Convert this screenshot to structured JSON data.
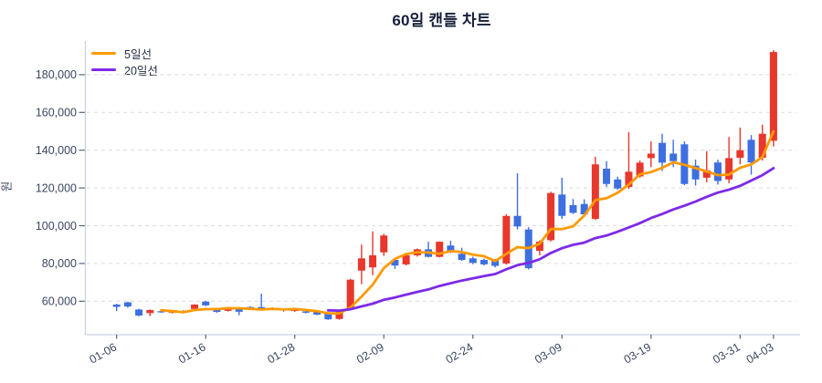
{
  "title": "60일 캔들 차트",
  "y_axis": {
    "label": "원",
    "tick_values": [
      60000,
      80000,
      100000,
      120000,
      140000,
      160000,
      180000
    ]
  },
  "x_axis": {
    "ticks": [
      {
        "label": "01-06",
        "i": 0
      },
      {
        "label": "01-16",
        "i": 8
      },
      {
        "label": "01-28",
        "i": 16
      },
      {
        "label": "02-09",
        "i": 24
      },
      {
        "label": "02-24",
        "i": 32
      },
      {
        "label": "03-09",
        "i": 40
      },
      {
        "label": "03-19",
        "i": 48
      },
      {
        "label": "03-31",
        "i": 56
      },
      {
        "label": "04-03",
        "i": 59
      }
    ]
  },
  "legend": [
    {
      "label": "5일선",
      "color": "#ff9900"
    },
    {
      "label": "20일선",
      "color": "#7d2ae8"
    }
  ],
  "colors": {
    "up": "#e8372c",
    "down": "#3e6fe1",
    "ma5": "#ff9900",
    "ma20": "#7d2ae8",
    "grid": "#dcdcdc",
    "spine": "#c9d3e2",
    "tick": "#55627e",
    "tick_label": "#3a4660",
    "title": "#17203a"
  },
  "chart_data": {
    "type": "candlestick",
    "title": "60일 캔들 차트",
    "ylabel": "원",
    "unit": "KRW",
    "ylim": [
      46000,
      196000
    ],
    "grid": "horizontal-dashed",
    "legend_position": "top-left",
    "candle_count": 60,
    "up_color": "#e8372c",
    "down_color": "#3e6fe1",
    "ma_series": [
      {
        "name": "5일선",
        "period": 5,
        "color": "#ff9900"
      },
      {
        "name": "20일선",
        "period": 20,
        "color": "#7d2ae8"
      }
    ],
    "ohlc": [
      [
        58200,
        58600,
        54800,
        57000
      ],
      [
        59400,
        59700,
        56500,
        57200
      ],
      [
        55600,
        56000,
        52000,
        52400
      ],
      [
        53700,
        55600,
        52100,
        55300
      ],
      [
        54700,
        55100,
        53800,
        54200
      ],
      [
        54200,
        55300,
        53500,
        54500
      ],
      [
        54900,
        55200,
        53600,
        54300
      ],
      [
        55900,
        58400,
        55600,
        58200
      ],
      [
        59800,
        60100,
        57400,
        57800
      ],
      [
        56000,
        56400,
        53900,
        54300
      ],
      [
        54900,
        57000,
        54500,
        56800
      ],
      [
        56300,
        56600,
        52600,
        54400
      ],
      [
        56900,
        57300,
        55900,
        56400
      ],
      [
        56900,
        64000,
        55900,
        56200
      ],
      [
        56500,
        56800,
        55300,
        55900
      ],
      [
        55900,
        56200,
        54400,
        55200
      ],
      [
        54800,
        55900,
        54300,
        55600
      ],
      [
        54600,
        54900,
        53500,
        53900
      ],
      [
        54700,
        54900,
        52600,
        52900
      ],
      [
        53800,
        54000,
        50100,
        50400
      ],
      [
        50600,
        55000,
        50200,
        54800
      ],
      [
        56100,
        71800,
        55800,
        71400
      ],
      [
        76200,
        90000,
        69000,
        82700
      ],
      [
        77900,
        97000,
        73800,
        84300
      ],
      [
        85900,
        95700,
        84000,
        94800
      ],
      [
        81900,
        82400,
        77100,
        78900
      ],
      [
        79500,
        84800,
        79000,
        84300
      ],
      [
        84300,
        87900,
        83600,
        87500
      ],
      [
        87500,
        91500,
        83200,
        83500
      ],
      [
        83500,
        91700,
        83200,
        91500
      ],
      [
        89500,
        92000,
        85500,
        86000
      ],
      [
        85100,
        88300,
        81400,
        81900
      ],
      [
        82700,
        83600,
        79600,
        80300
      ],
      [
        81900,
        82600,
        78900,
        79500
      ],
      [
        81900,
        82400,
        77900,
        78700
      ],
      [
        80000,
        106000,
        79400,
        105200
      ],
      [
        105200,
        127800,
        98000,
        99600
      ],
      [
        98000,
        99200,
        76800,
        77500
      ],
      [
        86700,
        92200,
        84300,
        91500
      ],
      [
        92300,
        118000,
        91700,
        117300
      ],
      [
        116500,
        125400,
        103600,
        105200
      ],
      [
        110900,
        114100,
        106200,
        106800
      ],
      [
        111500,
        114000,
        105000,
        106000
      ],
      [
        103600,
        136500,
        103000,
        132500
      ],
      [
        130200,
        134200,
        120500,
        122100
      ],
      [
        124500,
        126000,
        119000,
        119700
      ],
      [
        120500,
        149500,
        119500,
        128600
      ],
      [
        126100,
        134500,
        125500,
        133400
      ],
      [
        135800,
        144700,
        131000,
        138200
      ],
      [
        143900,
        148700,
        129000,
        133400
      ],
      [
        138200,
        145500,
        131000,
        134200
      ],
      [
        143100,
        144700,
        121500,
        122100
      ],
      [
        131800,
        135000,
        121300,
        124500
      ],
      [
        125400,
        139500,
        123000,
        129400
      ],
      [
        133500,
        135000,
        121800,
        123700
      ],
      [
        124500,
        147000,
        122500,
        135800
      ],
      [
        136000,
        152000,
        132500,
        140000
      ],
      [
        145500,
        148000,
        127000,
        133500
      ],
      [
        136000,
        153500,
        134500,
        148700
      ],
      [
        145000,
        193000,
        142000,
        192000
      ]
    ]
  }
}
